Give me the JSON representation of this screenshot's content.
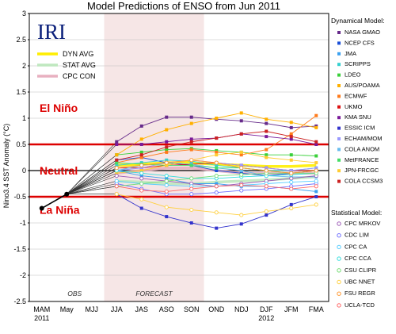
{
  "chart_data": {
    "type": "line",
    "title": "Model Predictions of ENSO from Jun 2011",
    "ylabel": "Nino3.4 SST Anomaly (°C)",
    "ylim": [
      -2.5,
      3.0
    ],
    "yticks": [
      "3",
      "2.5",
      "2",
      "1.5",
      "1",
      "0.5",
      "0",
      "-0.5",
      "-1",
      "-1.5",
      "-2",
      "-2.5"
    ],
    "categories": [
      "MAM",
      "May",
      "MJJ",
      "JJA",
      "JAS",
      "ASO",
      "SON",
      "OND",
      "NDJ",
      "DJF",
      "JFM",
      "FMA"
    ],
    "year_labels": [
      {
        "label": "2011",
        "at": 0
      },
      {
        "label": "2012",
        "at": 9
      }
    ],
    "forecast_range": [
      3,
      6
    ],
    "logo": "IRI",
    "obs_label": "OBS",
    "forecast_label": "FORECAST",
    "zones": [
      {
        "label": "El Niño",
        "y": 1.2
      },
      {
        "label": "Neutral",
        "y": 0.0
      },
      {
        "label": "La Niña",
        "y": -0.75
      }
    ],
    "thresholds": [
      0.5,
      -0.5
    ],
    "threshold_color": "#dd0000",
    "observed": {
      "x": [
        0,
        1
      ],
      "values": [
        -0.72,
        -0.45
      ],
      "color": "#000000"
    },
    "avg_legend": [
      {
        "name": "DYN AVG",
        "color": "#ffee00"
      },
      {
        "name": "STAT AVG",
        "color": "#bfe8bf"
      },
      {
        "name": "CPC CON",
        "color": "#e8b0c0"
      }
    ],
    "dynamical_header": "Dynamical Model:",
    "statistical_header": "Statistical Model:",
    "dynamical": [
      {
        "name": "NASA GMAO",
        "color": "#662a8a",
        "values": [
          0.55,
          0.85,
          1.02,
          1.02,
          0.98,
          0.95,
          0.9,
          0.82,
          0.85
        ]
      },
      {
        "name": "NCEP CFS",
        "color": "#1a4fd8",
        "values": [
          0.2,
          0.25,
          0.15,
          0.1,
          0.0,
          -0.05,
          -0.1,
          -0.05,
          0.0
        ]
      },
      {
        "name": "JMA",
        "color": "#3aa0f0",
        "values": [
          0.0,
          -0.1,
          -0.15,
          -0.25,
          -0.25,
          -0.3,
          -0.3,
          -0.35,
          -0.4
        ]
      },
      {
        "name": "SCRIPPS",
        "color": "#33d0d0",
        "values": [
          0.1,
          0.15,
          0.2,
          0.18,
          0.1,
          0.05,
          0.0,
          0.0,
          0.05
        ]
      },
      {
        "name": "LDEO",
        "color": "#3ad03a",
        "values": [
          0.3,
          0.35,
          0.4,
          0.42,
          0.38,
          0.35,
          0.3,
          0.3,
          0.28
        ]
      },
      {
        "name": "AUS/POAMA",
        "color": "#ffb000",
        "values": [
          0.3,
          0.6,
          0.78,
          0.9,
          1.0,
          1.1,
          0.98,
          0.92,
          0.82
        ]
      },
      {
        "name": "ECMWF",
        "color": "#ff7a1a",
        "values": [
          0.15,
          0.25,
          0.35,
          0.4,
          0.35,
          0.3,
          0.4,
          0.7,
          1.05
        ]
      },
      {
        "name": "UKMO",
        "color": "#dd1111",
        "values": [
          0.05,
          0.05,
          0.1,
          0.12,
          0.15,
          0.1,
          0.05,
          0.0,
          0.0
        ]
      },
      {
        "name": "KMA SNU",
        "color": "#7a1a9a",
        "values": [
          0.5,
          0.5,
          0.55,
          0.6,
          0.62,
          0.7,
          0.65,
          0.6,
          0.5
        ]
      },
      {
        "name": "ESSIC ICM",
        "color": "#3333cc",
        "values": [
          -0.45,
          -0.72,
          -0.88,
          -1.0,
          -1.1,
          -1.02,
          -0.85,
          -0.65,
          -0.5
        ]
      },
      {
        "name": "ECHAM/MOM",
        "color": "#9999ff",
        "values": [
          0.0,
          0.05,
          0.15,
          0.2,
          0.15,
          0.1,
          0.05,
          0.0,
          0.05
        ]
      },
      {
        "name": "COLA ANOM",
        "color": "#66bbee",
        "values": [
          0.0,
          0.1,
          0.15,
          0.12,
          0.05,
          0.0,
          -0.1,
          -0.12,
          -0.12
        ]
      },
      {
        "name": "MetFRANCE",
        "color": "#44dd66",
        "values": [
          0.15,
          0.12,
          0.1,
          0.1,
          0.05,
          0.05,
          0.0,
          -0.05,
          0.0
        ]
      },
      {
        "name": "JPN-FRCGC",
        "color": "#ffcc33",
        "values": [
          -0.05,
          0.0,
          0.1,
          0.2,
          0.3,
          0.35,
          0.25,
          0.2,
          0.15
        ]
      },
      {
        "name": "COLA CCSM3",
        "color": "#cc2222",
        "values": [
          0.2,
          0.3,
          0.45,
          0.55,
          0.62,
          0.7,
          0.75,
          0.65,
          0.55
        ]
      }
    ],
    "statistical": [
      {
        "name": "CPC MRKOV",
        "color": "#9b59b6",
        "values": [
          -0.1,
          -0.15,
          -0.2,
          -0.25,
          -0.3,
          -0.25,
          -0.2,
          -0.15,
          -0.1
        ]
      },
      {
        "name": "CDC LIM",
        "color": "#7070ff",
        "values": [
          -0.25,
          -0.35,
          -0.45,
          -0.45,
          -0.42,
          -0.38,
          -0.35,
          -0.3,
          -0.25
        ]
      },
      {
        "name": "CPC CA",
        "color": "#55ccff",
        "values": [
          -0.2,
          -0.25,
          -0.28,
          -0.3,
          -0.3,
          -0.28,
          -0.25,
          -0.22,
          -0.2
        ]
      },
      {
        "name": "CPC CCA",
        "color": "#33dddd",
        "values": [
          0.0,
          -0.05,
          -0.1,
          -0.15,
          -0.15,
          -0.12,
          -0.1,
          -0.08,
          -0.05
        ]
      },
      {
        "name": "CSU CLIPR",
        "color": "#77dd77",
        "values": [
          -0.3,
          -0.25,
          -0.2,
          -0.15,
          -0.1,
          -0.08,
          -0.05,
          -0.05,
          -0.05
        ]
      },
      {
        "name": "UBC NNET",
        "color": "#ffd040",
        "values": [
          -0.45,
          -0.55,
          -0.7,
          -0.75,
          -0.8,
          -0.85,
          -0.78,
          -0.72,
          -0.65
        ]
      },
      {
        "name": "FSU REGR",
        "color": "#ff9933",
        "values": [
          0.05,
          0.1,
          0.15,
          0.2,
          0.15,
          0.05,
          0.0,
          -0.05,
          0.0
        ]
      },
      {
        "name": "UCLA-TCD",
        "color": "#ff6666",
        "values": [
          -0.3,
          -0.38,
          -0.4,
          -0.35,
          -0.3,
          -0.28,
          -0.3,
          -0.35,
          -0.3
        ]
      }
    ],
    "averages": [
      {
        "name": "DYN AVG",
        "color": "#ffee00",
        "values": [
          0.1,
          0.12,
          0.15,
          0.15,
          0.12,
          0.1,
          0.08,
          0.08,
          0.1
        ]
      },
      {
        "name": "STAT AVG",
        "color": "#bfe8bf",
        "values": [
          -0.2,
          -0.22,
          -0.25,
          -0.25,
          -0.22,
          -0.2,
          -0.18,
          -0.15,
          -0.12
        ]
      },
      {
        "name": "CPC CON",
        "color": "#e8b0c0",
        "values": [
          -0.05,
          0.0,
          0.05,
          0.05,
          0.0,
          -0.05,
          -0.05,
          -0.05,
          -0.05
        ]
      }
    ]
  }
}
